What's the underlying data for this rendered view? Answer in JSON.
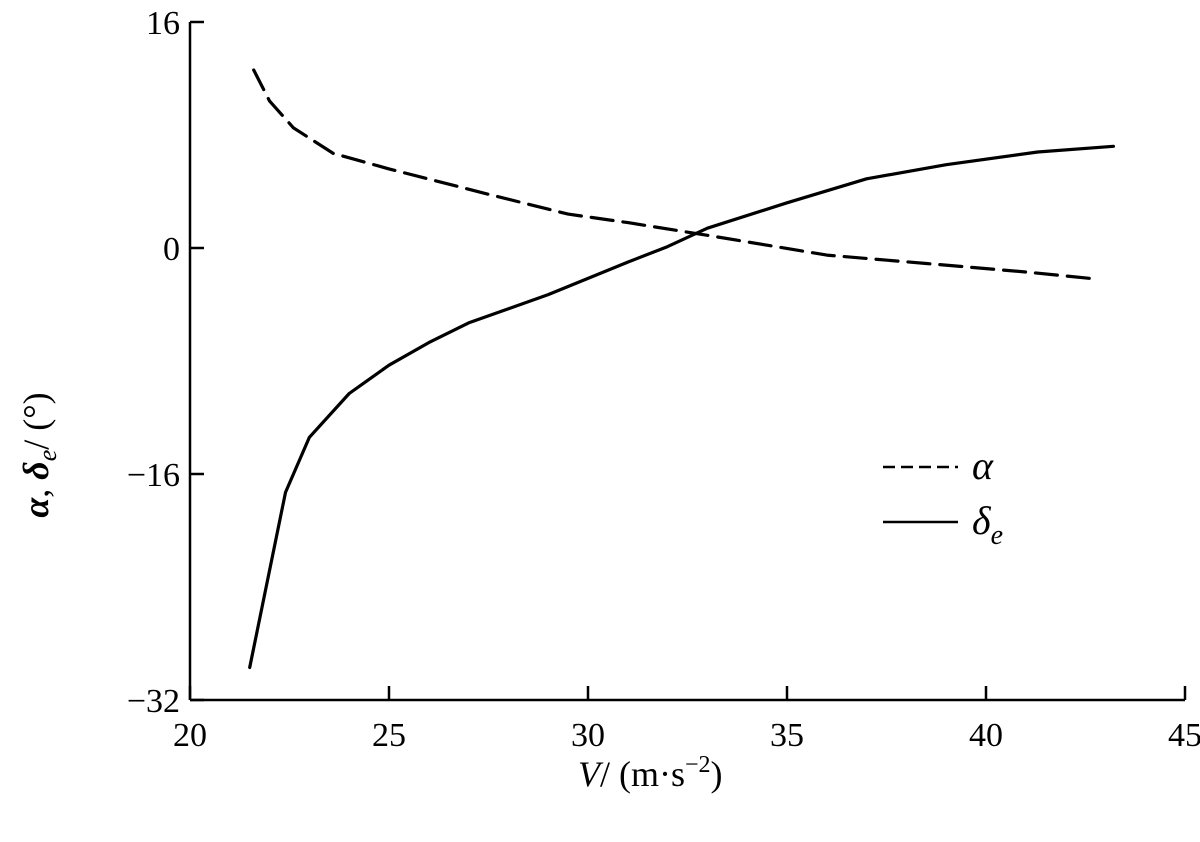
{
  "chart_data": {
    "type": "line",
    "title": "",
    "xlabel": {
      "symbol": "V",
      "unit_open": "/ (m·s",
      "unit_exp": "−2",
      "unit_close": ")"
    },
    "ylabel": {
      "alpha": "α",
      "sep": ", ",
      "delta": "δ",
      "delta_sub": "e",
      "unit": "/ (°)"
    },
    "xlim": [
      20,
      45
    ],
    "ylim": [
      -32,
      16
    ],
    "xticks": [
      "20",
      "25",
      "30",
      "35",
      "40",
      "45"
    ],
    "yticks": [
      "16",
      "0",
      "−16",
      "−32"
    ],
    "xtick_values": [
      20,
      25,
      30,
      35,
      40,
      45
    ],
    "ytick_values": [
      16,
      0,
      -16,
      -32
    ],
    "grid": false,
    "legend_position": "right-center",
    "series": [
      {
        "name": "α",
        "style": "dashed",
        "color": "#000000",
        "points": [
          [
            21.6,
            12.6
          ],
          [
            22.0,
            10.4
          ],
          [
            22.6,
            8.5
          ],
          [
            23.6,
            6.7
          ],
          [
            25.0,
            5.6
          ],
          [
            27.5,
            3.8
          ],
          [
            29.5,
            2.4
          ],
          [
            31.0,
            1.8
          ],
          [
            33.0,
            0.9
          ],
          [
            36.0,
            -0.5
          ],
          [
            38.5,
            -1.1
          ],
          [
            41.0,
            -1.7
          ],
          [
            42.8,
            -2.2
          ]
        ]
      },
      {
        "name": "δ",
        "name_sub": "e",
        "style": "solid",
        "color": "#000000",
        "points": [
          [
            21.5,
            -29.7
          ],
          [
            22.4,
            -17.3
          ],
          [
            23.0,
            -13.4
          ],
          [
            24.0,
            -10.3
          ],
          [
            25.0,
            -8.3
          ],
          [
            26.0,
            -6.7
          ],
          [
            27.0,
            -5.3
          ],
          [
            29.0,
            -3.3
          ],
          [
            31.0,
            -1.0
          ],
          [
            32.0,
            0.1
          ],
          [
            33.0,
            1.4
          ],
          [
            35.0,
            3.2
          ],
          [
            37.0,
            4.9
          ],
          [
            39.0,
            5.9
          ],
          [
            41.3,
            6.8
          ],
          [
            43.2,
            7.2
          ]
        ]
      }
    ]
  }
}
